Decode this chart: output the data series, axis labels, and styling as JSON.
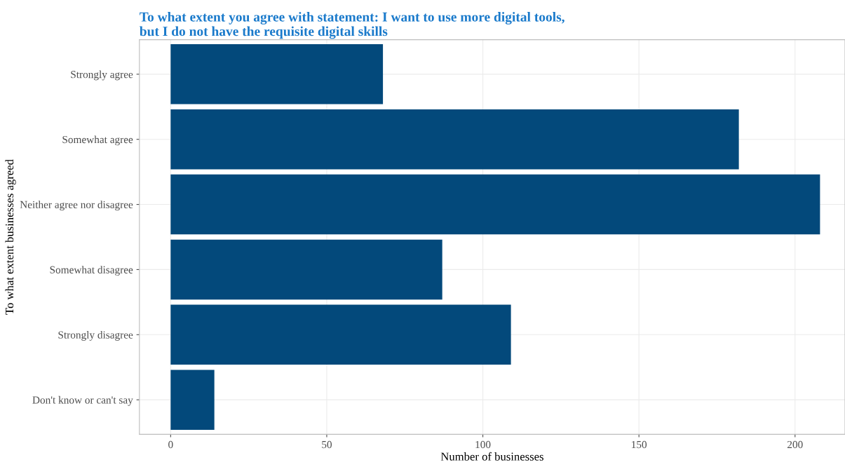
{
  "chart_data": {
    "type": "bar",
    "orientation": "horizontal",
    "title": "To what extent you agree with statement: I want to use more digital tools,\nbut I do not have the requisite digital skills",
    "xlabel": "Number of businesses",
    "ylabel": "To what extent businesses agreed",
    "categories": [
      "Strongly agree",
      "Somewhat agree",
      "Neither agree nor disagree",
      "Somewhat disagree",
      "Strongly disagree",
      "Don't know or can't say"
    ],
    "values": [
      68,
      182,
      208,
      87,
      109,
      14
    ],
    "color": "#03497b",
    "xlim": [
      -10,
      216
    ],
    "xticks": [
      0,
      50,
      100,
      150,
      200
    ],
    "grid": true,
    "legend": false
  }
}
